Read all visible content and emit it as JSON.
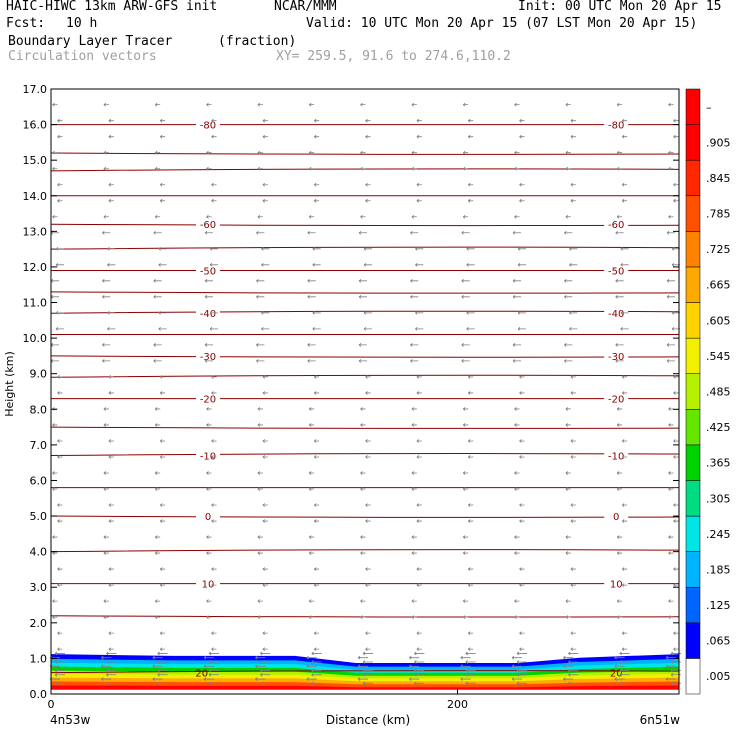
{
  "header": {
    "model": "HAIC-HIWC 13km ARW-GFS init",
    "org": "NCAR/MMM",
    "init": "Init: 00 UTC Mon 20 Apr 15",
    "fcst_label": "Fcst:",
    "fcst_value": "10 h",
    "valid": "Valid: 10 UTC Mon 20 Apr 15 (07 LST Mon 20 Apr 15)",
    "field": "Boundary Layer Tracer",
    "units": "(fraction)",
    "vectors": "Circulation vectors",
    "xy": "XY= 259.5, 91.6 to 274.6,110.2"
  },
  "chart_data": {
    "type": "heatmap",
    "title": "Boundary Layer Tracer",
    "units": "(fraction)",
    "xlabel": "Distance (km)",
    "ylabel": "Height (km)",
    "xlim": [
      0,
      309
    ],
    "ylim": [
      0,
      17
    ],
    "x_ticks": [
      0,
      200
    ],
    "x_tick_labels": [
      "0",
      "200"
    ],
    "x_end_labels": [
      "4n53w",
      "6n51w"
    ],
    "y_ticks": [
      0,
      1,
      2,
      3,
      4,
      5,
      6,
      7,
      8,
      9,
      10,
      11,
      12,
      13,
      14,
      15,
      16,
      17
    ],
    "y_tick_labels": [
      "0.0",
      "1.0",
      "2.0",
      "3.0",
      "4.0",
      "5.0",
      "6.0",
      "7.0",
      "8.0",
      "9.0",
      "10.0",
      "11.0",
      "12.0",
      "13.0",
      "14.0",
      "15.0",
      "16.0",
      "17.0"
    ],
    "colorbar": {
      "labels": [
        ".005",
        ".065",
        ".125",
        ".185",
        ".245",
        ".305",
        ".365",
        ".425",
        ".485",
        ".545",
        ".605",
        ".665",
        ".725",
        ".785",
        ".845",
        ".905",
        "–"
      ],
      "colors": [
        "#ffffff",
        "#0000ff",
        "#0064ff",
        "#00b4ff",
        "#00e6e6",
        "#00dc82",
        "#00d200",
        "#64e600",
        "#b4f000",
        "#f0f000",
        "#ffd200",
        "#ffaa00",
        "#ff8200",
        "#ff5000",
        "#ff2800",
        "#ff0000",
        "#ff0000"
      ]
    },
    "tracer_top_km": [
      {
        "x": 0,
        "top": 1.1
      },
      {
        "x": 60,
        "top": 1.05
      },
      {
        "x": 120,
        "top": 1.05
      },
      {
        "x": 150,
        "top": 0.85
      },
      {
        "x": 230,
        "top": 0.85
      },
      {
        "x": 260,
        "top": 1.0
      },
      {
        "x": 309,
        "top": 1.1
      }
    ],
    "isotherm_color": "#8b0000",
    "isotherms": [
      {
        "height": 0.6,
        "label": "20"
      },
      {
        "height": 2.2
      },
      {
        "height": 3.1,
        "label": "10"
      },
      {
        "height": 4.0
      },
      {
        "height": 5.0,
        "label": "0"
      },
      {
        "height": 5.8
      },
      {
        "height": 6.7,
        "label": "-10"
      },
      {
        "height": 7.5
      },
      {
        "height": 8.3,
        "label": "-20"
      },
      {
        "height": 8.9
      },
      {
        "height": 9.5,
        "label": "-30"
      },
      {
        "height": 10.1
      },
      {
        "height": 10.7,
        "label": "-40"
      },
      {
        "height": 11.3
      },
      {
        "height": 11.9,
        "label": "-50"
      },
      {
        "height": 12.5
      },
      {
        "height": 13.2,
        "label": "-60"
      },
      {
        "height": 14.0
      },
      {
        "height": 14.7
      },
      {
        "height": 15.2
      },
      {
        "height": 16.0,
        "label": "-80"
      }
    ],
    "vector_color": "#808080",
    "vector_direction": "westward (leftward)"
  }
}
